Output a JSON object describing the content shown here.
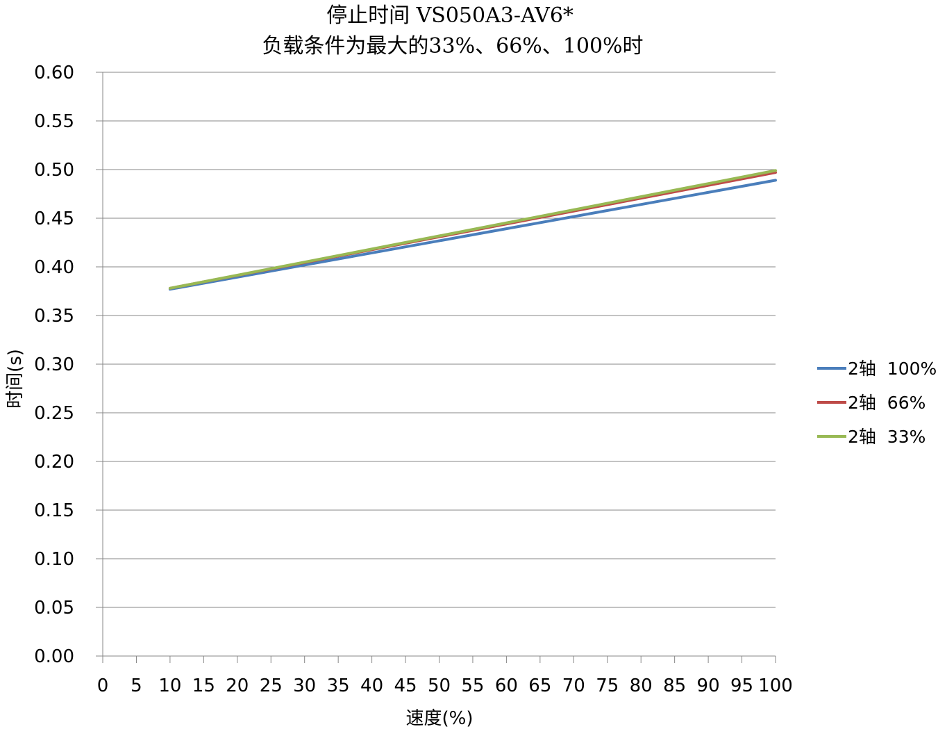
{
  "chart_data": {
    "type": "line",
    "title": "停止时间 VS050A3-AV6*",
    "subtitle": "负载条件为最大的33%、66%、100%时",
    "xlabel": "速度(%)",
    "ylabel": "时间(s)",
    "xlim": [
      0,
      100
    ],
    "ylim": [
      0,
      0.6
    ],
    "x_ticks": [
      "0",
      "5",
      "10",
      "15",
      "20",
      "25",
      "30",
      "35",
      "40",
      "45",
      "50",
      "55",
      "60",
      "65",
      "70",
      "75",
      "80",
      "85",
      "90",
      "95",
      "100"
    ],
    "y_ticks": [
      "0.00",
      "0.05",
      "0.10",
      "0.15",
      "0.20",
      "0.25",
      "0.30",
      "0.35",
      "0.40",
      "0.45",
      "0.50",
      "0.55",
      "0.60"
    ],
    "grid": "horizontal",
    "legend_position": "right",
    "series": [
      {
        "name": "2轴  100%",
        "color": "#4a7ebb",
        "x": [
          10,
          100
        ],
        "y": [
          0.377,
          0.489
        ]
      },
      {
        "name": "2轴  66%",
        "color": "#be4b48",
        "x": [
          10,
          100
        ],
        "y": [
          0.378,
          0.497
        ]
      },
      {
        "name": "2轴  33%",
        "color": "#98b954",
        "x": [
          10,
          100
        ],
        "y": [
          0.378,
          0.499
        ]
      }
    ]
  }
}
